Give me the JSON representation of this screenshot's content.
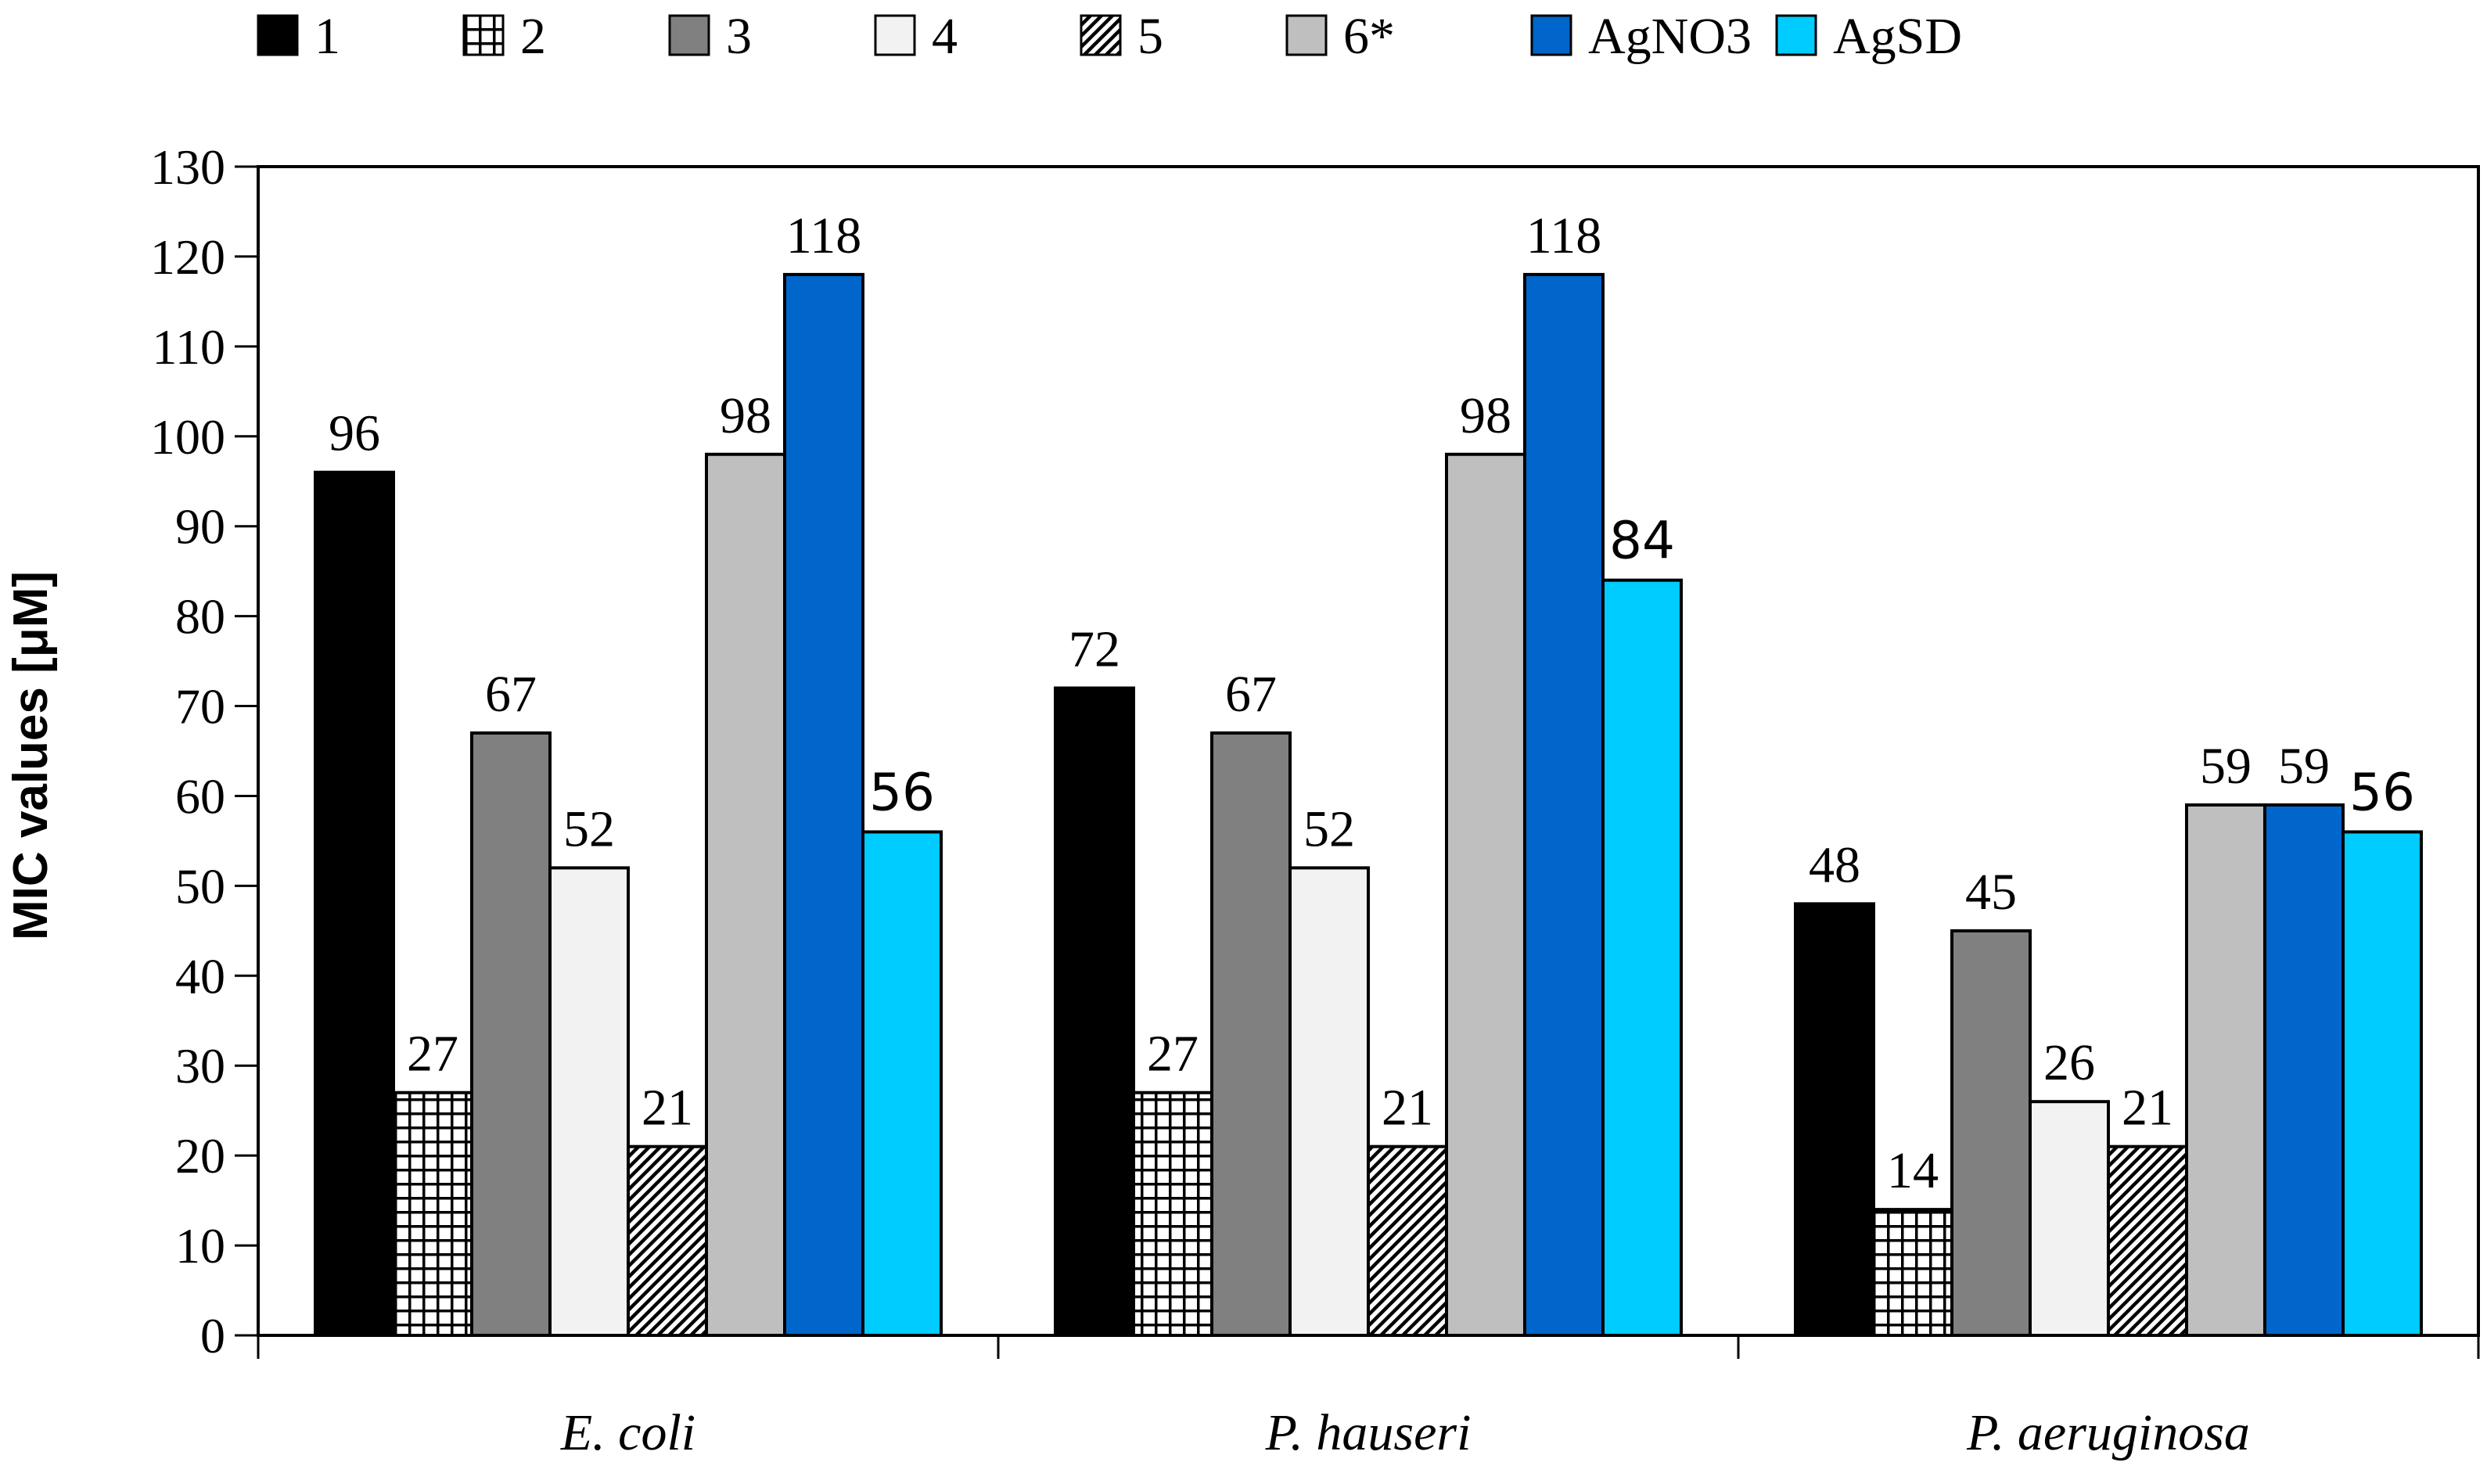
{
  "chart_data": {
    "type": "bar",
    "title": "",
    "xlabel": "",
    "ylabel": "MIC values [μM]",
    "ylim": [
      0,
      130
    ],
    "ytick_step": 10,
    "grid": false,
    "legend_position": "top",
    "categories": [
      "E. coli",
      "P. hauseri",
      "P. aeruginosa"
    ],
    "series": [
      {
        "name": "1",
        "fill": "#000000",
        "pattern": "solid",
        "values": [
          96,
          72,
          48
        ],
        "labels": [
          "96",
          "72",
          "48"
        ]
      },
      {
        "name": "2",
        "fill": "#ffffff",
        "pattern": "grid",
        "values": [
          27,
          27,
          14
        ],
        "labels": [
          "27",
          "27",
          "14"
        ]
      },
      {
        "name": "3",
        "fill": "#808080",
        "pattern": "solid",
        "values": [
          67,
          67,
          45
        ],
        "labels": [
          "67",
          "67",
          "45"
        ]
      },
      {
        "name": "4",
        "fill": "#f2f2f2",
        "pattern": "solid",
        "values": [
          52,
          52,
          26
        ],
        "labels": [
          "52",
          "52",
          "26"
        ]
      },
      {
        "name": "5",
        "fill": "#ffffff",
        "pattern": "diagonal",
        "values": [
          21,
          21,
          21
        ],
        "labels": [
          "21",
          "21",
          "21"
        ]
      },
      {
        "name": "6*",
        "fill": "#bfbfbf",
        "pattern": "solid",
        "values": [
          98,
          98,
          59
        ],
        "labels": [
          "98",
          "98",
          "59"
        ]
      },
      {
        "name": "AgNO3",
        "fill": "#0066cc",
        "pattern": "solid",
        "values": [
          118,
          118,
          59
        ],
        "labels": [
          "118",
          "118",
          "59"
        ]
      },
      {
        "name": "AgSD",
        "fill": "#00ccff",
        "pattern": "solid",
        "values": [
          56,
          84,
          56
        ],
        "labels": [
          "56",
          "84",
          "56"
        ]
      }
    ]
  }
}
